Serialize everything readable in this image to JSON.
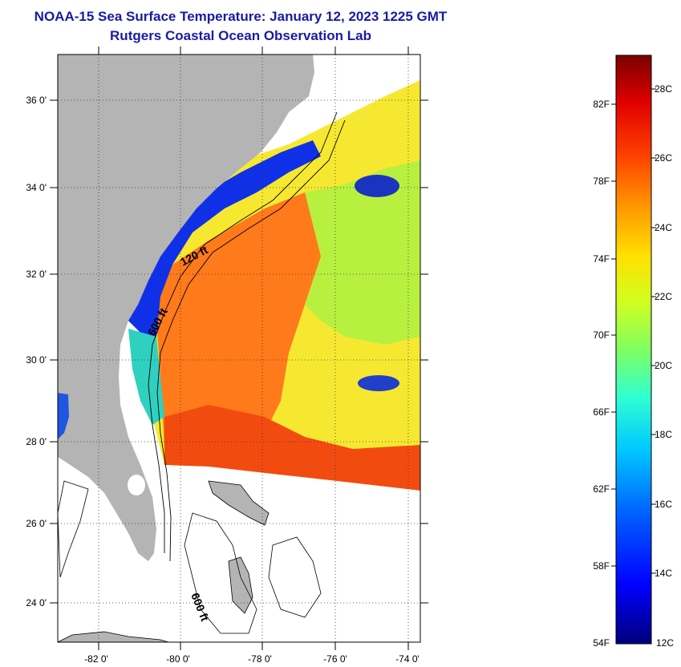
{
  "title": {
    "line1": "NOAA-15 Sea Surface Temperature:  January 12, 2023 1225 GMT",
    "line2": "Rutgers Coastal Ocean Observation Lab"
  },
  "map": {
    "lat_labels": [
      "36 0'",
      "34 0'",
      "32 0'",
      "30 0'",
      "28 0'",
      "26 0'",
      "24 0'"
    ],
    "lon_labels": [
      "-82 0'",
      "-80 0'",
      "-78 0'",
      "-76 0'",
      "-74 0'"
    ],
    "contour_labels": [
      "120 ft",
      "600 ft",
      "600 ft"
    ]
  },
  "colorbar": {
    "fahrenheit_labels": [
      "82F",
      "78F",
      "74F",
      "70F",
      "66F",
      "62F",
      "58F",
      "54F"
    ],
    "celsius_labels": [
      "28C",
      "26C",
      "24C",
      "22C",
      "20C",
      "18C",
      "16C",
      "14C",
      "12C"
    ]
  },
  "colors": {
    "title": "#1a1aa6",
    "land": "#b4b4b4",
    "no_data": "#ffffff"
  }
}
